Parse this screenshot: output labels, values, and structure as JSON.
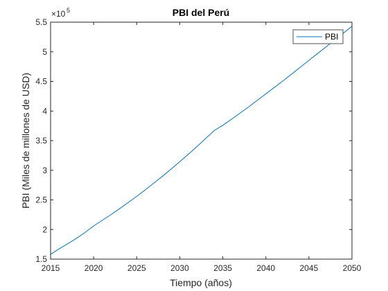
{
  "chart_data": {
    "type": "line",
    "title": "PBI del Perú",
    "xlabel": "Tiempo (años)",
    "ylabel": "PBI (Miles de millones de USD)",
    "y_exponent_base": "×10",
    "y_exponent_power": "5",
    "xlim": [
      2015,
      2050
    ],
    "ylim": [
      150000,
      550000
    ],
    "x_ticks": [
      2015,
      2020,
      2025,
      2030,
      2035,
      2040,
      2045,
      2050
    ],
    "y_ticks": [
      1.5,
      2,
      2.5,
      3,
      3.5,
      4,
      4.5,
      5,
      5.5
    ],
    "y_tick_labels": [
      "1.5",
      "2",
      "2.5",
      "3",
      "3.5",
      "4",
      "4.5",
      "5",
      "5.5"
    ],
    "grid": false,
    "legend_position": "top-right",
    "series": [
      {
        "name": "PBI",
        "color": "#0072BD",
        "x": [
          2015,
          2016,
          2017,
          2018,
          2019,
          2020,
          2021,
          2022,
          2023,
          2024,
          2025,
          2026,
          2027,
          2028,
          2029,
          2030,
          2031,
          2032,
          2033,
          2034,
          2035,
          2036,
          2037,
          2038,
          2039,
          2040,
          2041,
          2042,
          2043,
          2044,
          2045,
          2046,
          2047,
          2048,
          2049,
          2050
        ],
        "values": [
          158000,
          167500,
          176000,
          185000,
          195000,
          206000,
          215500,
          225000,
          235000,
          245500,
          256000,
          267000,
          278500,
          290000,
          302000,
          314500,
          327000,
          340000,
          353500,
          367000,
          376000,
          386000,
          396500,
          407000,
          418000,
          429000,
          440000,
          451000,
          462500,
          474000,
          485500,
          497000,
          508500,
          520000,
          531500,
          543000
        ]
      }
    ]
  }
}
